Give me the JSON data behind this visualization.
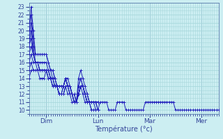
{
  "xlabel": "Température (°c)",
  "x_tick_positions": [
    24,
    96,
    168,
    240
  ],
  "x_tick_labels": [
    "Dim",
    "Lun",
    "Mar",
    "Mer"
  ],
  "ylim": [
    9.5,
    23.5
  ],
  "xlim": [
    0,
    264
  ],
  "yticks": [
    10,
    11,
    12,
    13,
    14,
    15,
    16,
    17,
    18,
    19,
    20,
    21,
    22,
    23
  ],
  "bg_color": "#cceef2",
  "grid_color": "#a8d8dc",
  "line_color": "#2222bb",
  "series": [
    [
      0,
      20,
      3,
      23,
      6,
      20,
      9,
      17,
      12,
      17,
      15,
      17,
      18,
      17,
      21,
      17,
      24,
      17,
      27,
      16,
      30,
      15,
      33,
      15,
      36,
      14,
      39,
      13,
      42,
      12,
      45,
      12,
      48,
      13,
      51,
      14,
      54,
      13,
      57,
      13,
      60,
      12,
      63,
      11,
      66,
      11,
      69,
      14,
      72,
      15,
      75,
      14,
      78,
      13,
      81,
      12,
      84,
      11,
      87,
      11,
      90,
      11,
      93,
      11,
      96,
      10,
      99,
      11,
      102,
      11,
      105,
      11,
      108,
      11,
      111,
      10,
      114,
      10,
      117,
      10,
      120,
      10,
      123,
      11,
      126,
      11,
      129,
      11,
      132,
      11,
      135,
      10,
      138,
      10,
      141,
      10,
      144,
      10,
      147,
      10,
      150,
      10,
      153,
      10,
      156,
      10,
      159,
      10,
      162,
      11,
      165,
      11,
      168,
      11,
      171,
      11,
      174,
      11,
      177,
      11,
      180,
      11,
      183,
      11,
      186,
      11,
      189,
      11,
      192,
      11,
      195,
      11,
      198,
      11,
      201,
      11,
      204,
      10,
      207,
      10,
      210,
      10,
      213,
      10,
      216,
      10,
      219,
      10,
      222,
      10,
      225,
      10,
      228,
      10,
      231,
      10,
      234,
      10,
      237,
      10,
      240,
      10,
      243,
      10,
      246,
      10,
      249,
      10,
      252,
      10,
      255,
      10,
      258,
      10,
      261,
      10,
      264,
      10
    ],
    [
      0,
      20,
      3,
      22,
      6,
      19,
      9,
      17,
      12,
      17,
      15,
      17,
      18,
      17,
      21,
      17,
      24,
      17,
      27,
      16,
      30,
      15,
      33,
      15,
      36,
      14,
      39,
      13,
      42,
      12,
      45,
      12,
      48,
      13,
      51,
      14,
      54,
      13,
      57,
      12,
      60,
      12,
      63,
      11,
      66,
      11,
      69,
      13,
      72,
      14,
      75,
      13,
      78,
      12,
      81,
      11,
      84,
      11,
      87,
      11,
      90,
      11,
      93,
      10,
      96,
      10
    ],
    [
      0,
      19,
      3,
      21,
      6,
      18,
      9,
      16,
      12,
      16,
      15,
      16,
      18,
      16,
      21,
      16,
      24,
      16,
      27,
      15,
      30,
      15,
      33,
      14,
      36,
      14,
      39,
      13,
      42,
      12,
      45,
      12,
      48,
      12,
      51,
      13,
      54,
      13,
      57,
      12,
      60,
      12,
      63,
      11,
      66,
      11,
      69,
      13,
      72,
      14,
      75,
      13,
      78,
      12,
      81,
      11,
      84,
      11,
      87,
      10,
      90,
      10,
      93,
      10,
      96,
      10
    ],
    [
      0,
      18,
      3,
      20,
      6,
      17,
      9,
      16,
      12,
      16,
      15,
      15,
      18,
      15,
      21,
      15,
      24,
      15,
      27,
      15,
      30,
      14,
      33,
      14,
      36,
      13,
      39,
      13,
      42,
      12,
      45,
      12,
      48,
      12,
      51,
      13,
      54,
      12,
      57,
      12,
      60,
      11,
      63,
      11,
      66,
      11,
      69,
      12,
      72,
      13,
      75,
      12,
      78,
      11,
      81,
      11,
      84,
      11,
      87,
      10,
      90,
      10,
      93,
      10,
      96,
      10
    ],
    [
      0,
      18,
      3,
      19,
      6,
      17,
      9,
      16,
      12,
      16,
      15,
      15,
      18,
      15,
      21,
      15,
      24,
      15,
      27,
      15,
      30,
      14,
      33,
      14,
      36,
      13,
      39,
      13,
      42,
      13,
      45,
      13,
      48,
      13,
      51,
      14,
      54,
      13,
      57,
      13,
      60,
      12,
      63,
      11,
      66,
      11,
      69,
      12,
      72,
      13,
      75,
      13,
      78,
      12,
      81,
      11,
      84,
      11,
      87,
      11,
      90,
      11,
      93,
      11,
      96,
      10
    ],
    [
      0,
      17,
      3,
      18,
      6,
      17,
      9,
      16,
      12,
      16,
      15,
      15,
      18,
      15,
      21,
      15,
      24,
      15,
      27,
      15,
      30,
      14,
      33,
      14,
      36,
      13,
      39,
      13,
      42,
      13,
      45,
      13,
      48,
      13,
      51,
      14,
      54,
      13,
      57,
      13,
      60,
      12,
      63,
      12,
      66,
      11,
      69,
      12,
      72,
      13,
      75,
      13,
      78,
      12,
      81,
      11,
      84,
      11,
      87,
      11,
      90,
      11,
      93,
      11,
      96,
      11
    ],
    [
      0,
      16,
      3,
      17,
      6,
      16,
      9,
      16,
      12,
      15,
      15,
      15,
      18,
      15,
      21,
      15,
      24,
      15,
      27,
      14,
      30,
      14,
      33,
      13,
      36,
      13,
      39,
      13,
      42,
      12,
      45,
      12,
      48,
      12,
      51,
      13,
      54,
      13,
      57,
      12,
      60,
      12,
      63,
      11,
      66,
      11,
      69,
      12,
      72,
      13,
      75,
      13,
      78,
      12,
      81,
      11,
      84,
      11,
      87,
      11,
      90,
      11,
      93,
      11,
      96,
      11
    ],
    [
      0,
      15,
      3,
      16,
      6,
      15,
      9,
      15,
      12,
      15,
      15,
      15,
      18,
      15,
      21,
      15,
      24,
      15,
      27,
      14,
      30,
      14,
      33,
      13,
      36,
      13,
      39,
      13,
      42,
      13,
      45,
      13,
      48,
      13,
      51,
      14,
      54,
      13,
      57,
      13,
      60,
      12,
      63,
      12,
      66,
      11,
      69,
      12,
      72,
      13,
      75,
      13,
      78,
      12,
      81,
      12,
      84,
      11,
      87,
      11,
      90,
      11,
      93,
      11,
      96,
      11
    ],
    [
      0,
      14,
      3,
      15,
      6,
      15,
      9,
      15,
      12,
      15,
      15,
      14,
      18,
      14,
      21,
      14,
      24,
      15,
      27,
      14,
      30,
      14,
      33,
      13,
      36,
      13,
      39,
      13,
      42,
      13,
      45,
      13,
      48,
      13,
      51,
      14,
      54,
      14,
      57,
      13,
      60,
      12,
      63,
      12,
      66,
      11,
      69,
      12,
      72,
      13,
      75,
      13,
      78,
      12,
      81,
      12,
      84,
      11,
      87,
      11,
      90,
      11,
      93,
      11,
      96,
      11
    ]
  ]
}
